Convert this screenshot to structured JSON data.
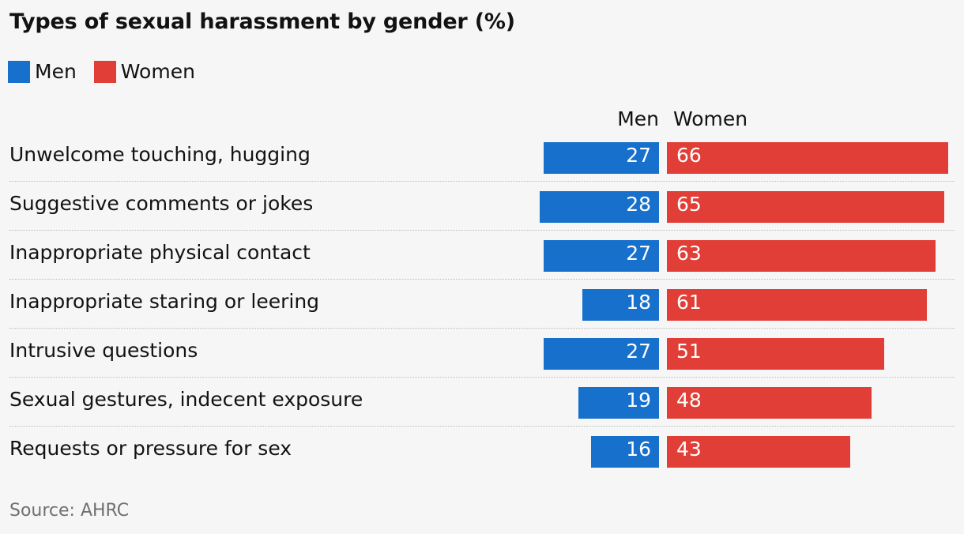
{
  "title": "Types of sexual harassment by gender (%)",
  "source": "Source: AHRC",
  "colors": {
    "men": "#1670cc",
    "women": "#e03e36"
  },
  "legend": [
    {
      "name": "Men",
      "color": "#1670cc"
    },
    {
      "name": "Women",
      "color": "#e03e36"
    }
  ],
  "column_headers": {
    "men": "Men",
    "women": "Women"
  },
  "chart_data": {
    "type": "bar",
    "orientation": "horizontal-diverging",
    "title": "Types of sexual harassment by gender (%)",
    "categories": [
      "Unwelcome touching, hugging",
      "Suggestive comments or jokes",
      "Inappropriate physical contact",
      "Inappropriate staring or leering",
      "Intrusive questions",
      "Sexual gestures, indecent exposure",
      "Requests or pressure for sex"
    ],
    "series": [
      {
        "name": "Men",
        "values": [
          27,
          28,
          27,
          18,
          27,
          19,
          16
        ]
      },
      {
        "name": "Women",
        "values": [
          66,
          65,
          63,
          61,
          51,
          48,
          43
        ]
      }
    ],
    "legend_position": "top-left",
    "grid": false
  }
}
